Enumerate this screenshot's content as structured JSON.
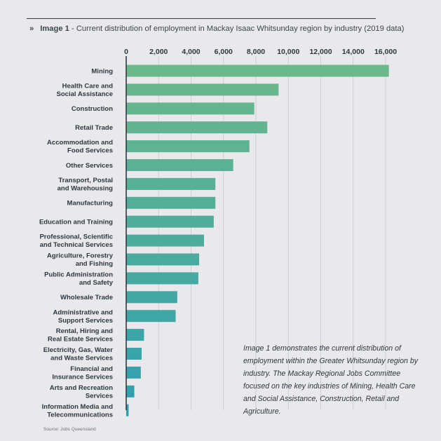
{
  "header": {
    "chevron": "»",
    "label": "Image 1",
    "title": " - Current distribution of employment in Mackay Isaac Whitsunday region by industry (2019 data)"
  },
  "note": "Image 1 demonstrates the current distribution of employment within the Greater Whitsunday region by industry. The Mackay Regional Jobs Committee focused on the key industries of Mining, Health Care and Social Assistance, Construction, Retail and Agriculture.",
  "source": "Source: Jobs Queensland",
  "colors": {
    "bar_top": "#6cb98a",
    "bar_bottom": "#2e9fb0",
    "axis": "#2f3a44",
    "grid": "#c9c8cc",
    "text": "#2e3842"
  },
  "chart_data": {
    "type": "bar",
    "orientation": "horizontal",
    "title": "Current distribution of employment in Mackay Isaac Whitsunday region by industry (2019 data)",
    "xlabel": "",
    "ylabel": "",
    "xlim": [
      0,
      16000
    ],
    "ticks": [
      0,
      2000,
      4000,
      6000,
      8000,
      10000,
      12000,
      14000,
      16000
    ],
    "tick_labels": [
      "0",
      "2,000",
      "4,000",
      "6,000",
      "8,000",
      "10,000",
      "12,000",
      "14,000",
      "16,000"
    ],
    "grid": true,
    "categories": [
      [
        "Mining"
      ],
      [
        "Health Care and",
        "Social Assistance"
      ],
      [
        "Construction"
      ],
      [
        "Retail Trade"
      ],
      [
        "Accommodation and",
        "Food Services"
      ],
      [
        "Other Services"
      ],
      [
        "Transport, Postal",
        "and Warehousing"
      ],
      [
        "Manufacturing"
      ],
      [
        "Education and Training"
      ],
      [
        "Professional, Scientific",
        "and Technical Services"
      ],
      [
        "Agriculture, Forestry",
        "and Fishing"
      ],
      [
        "Public Administration",
        "and Safety"
      ],
      [
        "Wholesale Trade"
      ],
      [
        "Administrative and",
        "Support Services"
      ],
      [
        "Rental, Hiring and",
        "Real Estate Services"
      ],
      [
        "Electricity, Gas, Water",
        "and Waste Services"
      ],
      [
        "Financial and",
        "Insurance Services"
      ],
      [
        "Arts and Recreation",
        "Services"
      ],
      [
        "Information Media and",
        "Telecommunications"
      ]
    ],
    "values": [
      16200,
      9400,
      7900,
      8700,
      7600,
      6600,
      5500,
      5500,
      5400,
      4800,
      4500,
      4450,
      3150,
      3050,
      1100,
      950,
      900,
      500,
      150
    ]
  }
}
